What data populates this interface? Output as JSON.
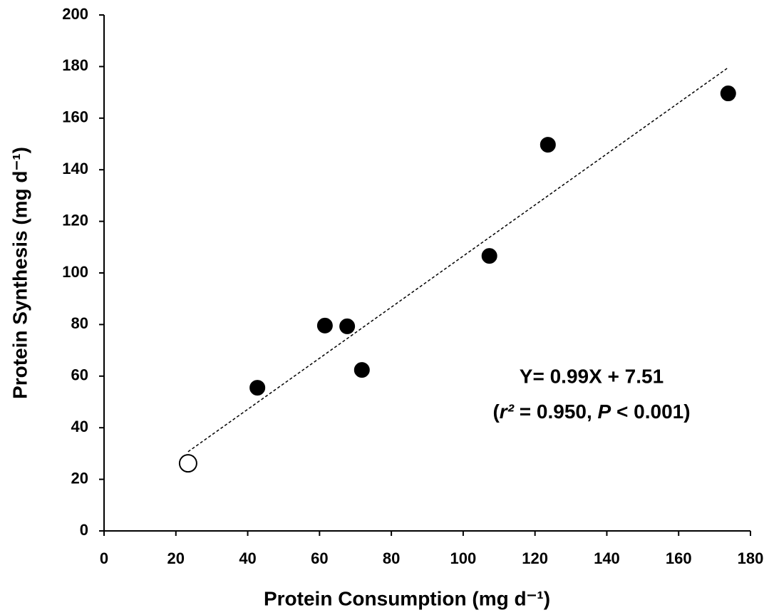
{
  "chart_data": {
    "type": "scatter",
    "x_label": "Protein Consumption (mg d⁻¹)",
    "y_label": "Protein Synthesis (mg d⁻¹)",
    "annotation_equation": "Y= 0.99X + 7.51",
    "annotation_stats": [
      "(",
      "r²",
      " = 0.950, ",
      "P",
      " < 0.001)"
    ],
    "xlim": [
      0,
      180
    ],
    "xticks": [
      0,
      20,
      40,
      60,
      80,
      100,
      120,
      140,
      160,
      180
    ],
    "ylim": [
      0,
      200
    ],
    "yticks": [
      0,
      20,
      40,
      60,
      80,
      100,
      120,
      140,
      160,
      180,
      200
    ],
    "series": [
      {
        "color": "#000000",
        "fill": "#000000",
        "x": [
          42.7,
          61.5,
          67.7,
          71.8,
          107.3,
          123.6,
          173.8
        ],
        "y": [
          55.5,
          79.6,
          79.3,
          62.4,
          106.6,
          149.7,
          169.6
        ]
      },
      {
        "color": "#000000",
        "fill": "#ffffff",
        "x": [
          23.4
        ],
        "y": [
          26.2
        ]
      }
    ],
    "trendline": {
      "color": "#000000",
      "x": [
        23.4,
        173.6
      ],
      "y": [
        30.7,
        179.4
      ]
    }
  }
}
